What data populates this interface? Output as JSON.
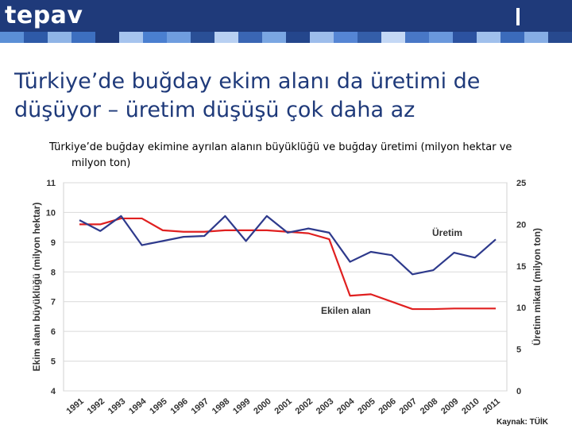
{
  "header": {
    "logo": "tepav",
    "colors": {
      "bar": "#1f3a7a"
    },
    "stripe_colors": [
      "#5b8fd6",
      "#2e5aa8",
      "#8fb4e6",
      "#3d6fc0",
      "#1f3a7a",
      "#a6c4ee",
      "#4a7fd0",
      "#6f9ddf",
      "#2a4f96",
      "#b8d0f2",
      "#3a66b4",
      "#7aa6e2",
      "#24468c",
      "#9dbdeb",
      "#5585d4",
      "#345ea9",
      "#c4d8f5",
      "#4877c6",
      "#6a98dc",
      "#2c52a0",
      "#a0c0ec",
      "#3b6bbb",
      "#86ade4",
      "#27498e"
    ]
  },
  "title": "Türkiye’de buğday ekim alanı da üretimi de düşüyor – üretim düşüşü çok daha az",
  "subtitle_line1": "Türkiye’de buğday ekimine ayrılan alanın büyüklüğü ve buğday üretimi (milyon hektar ve",
  "subtitle_line2": "milyon ton)",
  "source": "Kaynak: TÜİK",
  "chart_data": {
    "type": "line",
    "categories": [
      "1991",
      "1992",
      "1993",
      "1994",
      "1995",
      "1996",
      "1997",
      "1998",
      "1999",
      "2000",
      "2001",
      "2002",
      "2003",
      "2004",
      "2005",
      "2006",
      "2007",
      "2008",
      "2009",
      "2010",
      "2011"
    ],
    "ylabel_left": "Ekim alanı büyüklüğü (milyon hektar)",
    "ylabel_right": "Üretim mikatı (milyon ton)",
    "ylim_left": [
      4,
      11
    ],
    "ylim_right": [
      0,
      25
    ],
    "yticks_left": [
      4,
      5,
      6,
      7,
      8,
      9,
      10,
      11
    ],
    "yticks_right": [
      0,
      5,
      10,
      15,
      20,
      25
    ],
    "grid": true,
    "series": [
      {
        "name": "Ekilen alan",
        "axis": "left",
        "color": "#e02020",
        "values": [
          9.6,
          9.6,
          9.8,
          9.8,
          9.4,
          9.35,
          9.35,
          9.4,
          9.4,
          9.4,
          9.35,
          9.3,
          9.1,
          7.2,
          7.25,
          7.0,
          6.75,
          6.75,
          6.77,
          6.77,
          6.77
        ]
      },
      {
        "name": "Üretim",
        "axis": "right",
        "color": "#2e3a8c",
        "values": [
          20.5,
          19.2,
          21.0,
          17.5,
          18.0,
          18.5,
          18.6,
          21.0,
          18.0,
          21.0,
          19.0,
          19.5,
          19.0,
          15.5,
          16.7,
          16.3,
          14.0,
          14.5,
          16.6,
          16.0,
          18.2
        ]
      }
    ],
    "labels": {
      "uretim": "Üretim",
      "ekilen": "Ekilen alan"
    }
  }
}
